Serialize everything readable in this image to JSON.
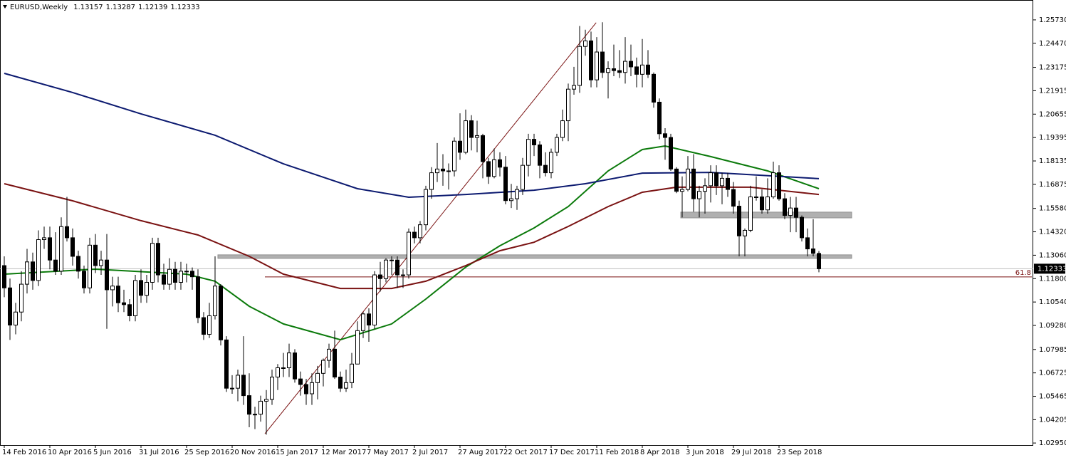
{
  "chart_data": {
    "type": "candlestick",
    "title": "EURUSD,Weekly",
    "categories": [
      "14 Feb 2016",
      null,
      null,
      null,
      null,
      null,
      null,
      null,
      "10 Apr 2016",
      null,
      null,
      null,
      null,
      null,
      null,
      null,
      "5 Jun 2016",
      null,
      null,
      null,
      null,
      null,
      null,
      null,
      "31 Jul 2016",
      null,
      null,
      null,
      null,
      null,
      null,
      null,
      "25 Sep 2016",
      null,
      null,
      null,
      null,
      null,
      null,
      null,
      "20 Nov 2016",
      null,
      null,
      null,
      null,
      null,
      null,
      null,
      "15 Jan 2017",
      null,
      null,
      null,
      null,
      null,
      null,
      null,
      "12 Mar 2017",
      null,
      null,
      null,
      null,
      null,
      null,
      null,
      "7 May 2017",
      null,
      null,
      null,
      null,
      null,
      null,
      null,
      "2 Jul 2017",
      null,
      null,
      null,
      null,
      null,
      null,
      null,
      "27 Aug 2017",
      null,
      null,
      null,
      null,
      null,
      null,
      null,
      "22 Oct 2017",
      null,
      null,
      null,
      null,
      null,
      null,
      null,
      "17 Dec 2017",
      null,
      null,
      null,
      null,
      null,
      null,
      null,
      "11 Feb 2018",
      null,
      null,
      null,
      null,
      null,
      null,
      null,
      "8 Apr 2018",
      null,
      null,
      null,
      null,
      null,
      null,
      null,
      "3 Jun 2018",
      null,
      null,
      null,
      null,
      null,
      null,
      null,
      "29 Jul 2018",
      null,
      null,
      null,
      null,
      null,
      null,
      null,
      "23 Sep 2018",
      null,
      null,
      null,
      null,
      null,
      null,
      null
    ],
    "open": [
      1.125,
      1.113,
      1.093,
      1.1,
      1.115,
      1.127,
      1.117,
      1.139,
      1.14,
      1.128,
      1.122,
      1.146,
      1.14,
      1.13,
      1.122,
      1.113,
      1.136,
      1.125,
      1.128,
      1.112,
      1.114,
      1.105,
      1.104,
      1.098,
      1.117,
      1.109,
      1.116,
      1.137,
      1.12,
      1.115,
      1.123,
      1.116,
      1.122,
      1.122,
      1.119,
      1.097,
      1.088,
      1.098,
      1.114,
      1.085,
      1.059,
      1.059,
      1.066,
      1.055,
      1.045,
      1.045,
      1.052,
      1.053,
      1.065,
      1.07,
      1.07,
      1.078,
      1.064,
      1.061,
      1.056,
      1.062,
      1.067,
      1.074,
      1.08,
      1.065,
      1.059,
      1.062,
      1.072,
      1.09,
      1.099,
      1.093,
      1.12,
      1.118,
      1.128,
      1.128,
      1.12,
      1.12,
      1.143,
      1.14,
      1.147,
      1.166,
      1.175,
      1.177,
      1.176,
      1.176,
      1.192,
      1.186,
      1.203,
      1.194,
      1.195,
      1.181,
      1.173,
      1.182,
      1.178,
      1.16,
      1.161,
      1.166,
      1.179,
      1.193,
      1.19,
      1.179,
      1.175,
      1.186,
      1.194,
      1.203,
      1.22,
      1.222,
      1.243,
      1.246,
      1.225,
      1.24,
      1.229,
      1.231,
      1.23,
      1.229,
      1.235,
      1.232,
      1.228,
      1.233,
      1.228,
      1.213,
      1.196,
      1.194,
      1.177,
      1.165,
      1.166,
      1.177,
      1.161,
      1.165,
      1.168,
      1.175,
      1.168,
      1.172,
      1.166,
      1.157,
      1.141,
      1.144,
      1.162,
      1.162,
      1.155,
      1.162,
      1.175,
      1.161,
      1.152,
      1.156,
      1.151,
      1.14,
      1.134,
      1.13157
    ],
    "high": [
      1.13,
      1.118,
      1.105,
      1.122,
      1.134,
      1.132,
      1.144,
      1.146,
      1.146,
      1.143,
      1.151,
      1.162,
      1.145,
      1.133,
      1.125,
      1.14,
      1.142,
      1.133,
      1.142,
      1.119,
      1.119,
      1.112,
      1.107,
      1.12,
      1.123,
      1.12,
      1.14,
      1.14,
      1.126,
      1.129,
      1.127,
      1.127,
      1.126,
      1.124,
      1.123,
      1.1,
      1.105,
      1.13,
      1.115,
      1.087,
      1.066,
      1.069,
      1.087,
      1.067,
      1.049,
      1.055,
      1.058,
      1.069,
      1.072,
      1.078,
      1.083,
      1.08,
      1.068,
      1.064,
      1.067,
      1.071,
      1.075,
      1.083,
      1.09,
      1.068,
      1.069,
      1.078,
      1.095,
      1.1,
      1.102,
      1.122,
      1.127,
      1.129,
      1.13,
      1.13,
      1.123,
      1.145,
      1.146,
      1.149,
      1.168,
      1.178,
      1.191,
      1.185,
      1.18,
      1.194,
      1.207,
      1.209,
      1.206,
      1.203,
      1.196,
      1.183,
      1.188,
      1.186,
      1.184,
      1.169,
      1.168,
      1.183,
      1.196,
      1.196,
      1.192,
      1.186,
      1.188,
      1.196,
      1.209,
      1.223,
      1.232,
      1.254,
      1.252,
      1.251,
      1.248,
      1.256,
      1.235,
      1.244,
      1.241,
      1.248,
      1.244,
      1.237,
      1.247,
      1.241,
      1.229,
      1.215,
      1.199,
      1.196,
      1.178,
      1.173,
      1.184,
      1.185,
      1.168,
      1.172,
      1.179,
      1.179,
      1.175,
      1.175,
      1.17,
      1.16,
      1.145,
      1.168,
      1.173,
      1.166,
      1.172,
      1.181,
      1.179,
      1.164,
      1.162,
      1.162,
      1.152,
      1.145,
      1.15,
      1.13287
    ],
    "low": [
      1.108,
      1.085,
      1.088,
      1.095,
      1.11,
      1.112,
      1.114,
      1.134,
      1.123,
      1.12,
      1.12,
      1.138,
      1.125,
      1.118,
      1.11,
      1.11,
      1.121,
      1.12,
      1.091,
      1.103,
      1.1,
      1.1,
      1.095,
      1.095,
      1.105,
      1.105,
      1.112,
      1.116,
      1.112,
      1.112,
      1.112,
      1.112,
      1.116,
      1.112,
      1.094,
      1.085,
      1.086,
      1.096,
      1.082,
      1.057,
      1.056,
      1.052,
      1.05,
      1.038,
      1.037,
      1.041,
      1.034,
      1.05,
      1.058,
      1.065,
      1.065,
      1.062,
      1.055,
      1.05,
      1.05,
      1.053,
      1.06,
      1.07,
      1.064,
      1.057,
      1.057,
      1.059,
      1.072,
      1.086,
      1.084,
      1.091,
      1.111,
      1.116,
      1.12,
      1.113,
      1.113,
      1.118,
      1.137,
      1.137,
      1.144,
      1.161,
      1.17,
      1.168,
      1.166,
      1.173,
      1.182,
      1.185,
      1.187,
      1.186,
      1.172,
      1.169,
      1.172,
      1.173,
      1.158,
      1.156,
      1.155,
      1.163,
      1.173,
      1.184,
      1.172,
      1.173,
      1.172,
      1.184,
      1.192,
      1.192,
      1.217,
      1.218,
      1.238,
      1.221,
      1.221,
      1.226,
      1.215,
      1.227,
      1.226,
      1.223,
      1.227,
      1.221,
      1.221,
      1.226,
      1.21,
      1.193,
      1.182,
      1.176,
      1.164,
      1.151,
      1.165,
      1.154,
      1.151,
      1.153,
      1.159,
      1.163,
      1.158,
      1.162,
      1.153,
      1.13,
      1.13,
      1.143,
      1.16,
      1.153,
      1.153,
      1.161,
      1.16,
      1.15,
      1.143,
      1.143,
      1.138,
      1.13,
      1.13,
      1.12139
    ],
    "close": [
      1.113,
      1.093,
      1.1,
      1.115,
      1.127,
      1.117,
      1.139,
      1.14,
      1.128,
      1.122,
      1.146,
      1.14,
      1.13,
      1.122,
      1.113,
      1.136,
      1.125,
      1.128,
      1.112,
      1.114,
      1.105,
      1.104,
      1.098,
      1.117,
      1.109,
      1.116,
      1.137,
      1.12,
      1.115,
      1.123,
      1.116,
      1.122,
      1.122,
      1.119,
      1.097,
      1.088,
      1.098,
      1.114,
      1.085,
      1.059,
      1.059,
      1.066,
      1.055,
      1.045,
      1.045,
      1.052,
      1.053,
      1.065,
      1.07,
      1.07,
      1.078,
      1.064,
      1.061,
      1.056,
      1.062,
      1.067,
      1.074,
      1.08,
      1.065,
      1.059,
      1.062,
      1.072,
      1.09,
      1.099,
      1.093,
      1.12,
      1.118,
      1.128,
      1.128,
      1.12,
      1.12,
      1.143,
      1.14,
      1.147,
      1.166,
      1.175,
      1.177,
      1.176,
      1.176,
      1.192,
      1.186,
      1.203,
      1.194,
      1.195,
      1.181,
      1.173,
      1.182,
      1.178,
      1.16,
      1.161,
      1.166,
      1.179,
      1.193,
      1.19,
      1.179,
      1.175,
      1.186,
      1.194,
      1.203,
      1.22,
      1.222,
      1.243,
      1.246,
      1.225,
      1.24,
      1.229,
      1.231,
      1.23,
      1.229,
      1.235,
      1.232,
      1.228,
      1.233,
      1.228,
      1.213,
      1.196,
      1.194,
      1.177,
      1.165,
      1.166,
      1.177,
      1.161,
      1.165,
      1.168,
      1.175,
      1.168,
      1.172,
      1.166,
      1.157,
      1.141,
      1.144,
      1.162,
      1.162,
      1.155,
      1.162,
      1.175,
      1.161,
      1.152,
      1.156,
      1.151,
      1.14,
      1.134,
      1.1316,
      1.12333
    ],
    "moving_averages": [
      {
        "color": "#0b7a0b",
        "x": [
          0,
          16,
          32,
          37,
          43,
          49,
          59,
          68,
          74,
          81,
          87,
          93,
          99,
          106,
          112,
          116,
          124,
          134,
          143
        ],
        "values": [
          1.1204,
          1.1231,
          1.1204,
          1.1166,
          1.1031,
          1.0936,
          1.0851,
          1.0936,
          1.107,
          1.1242,
          1.1357,
          1.1453,
          1.1568,
          1.176,
          1.1875,
          1.1894,
          1.1837,
          1.176,
          1.1664
        ]
      },
      {
        "color": "#7a1212",
        "x": [
          0,
          12,
          24,
          34,
          43,
          49,
          59,
          68,
          74,
          81,
          87,
          93,
          99,
          106,
          112,
          118,
          131,
          143
        ],
        "values": [
          1.1691,
          1.1599,
          1.1492,
          1.1415,
          1.13,
          1.1204,
          1.1127,
          1.1127,
          1.1166,
          1.125,
          1.133,
          1.1376,
          1.1461,
          1.1568,
          1.1645,
          1.1672,
          1.1672,
          1.1633
        ]
      },
      {
        "color": "#0c1a70",
        "x": [
          0,
          12,
          24,
          37,
          49,
          62,
          71,
          81,
          93,
          102,
          112,
          124,
          143
        ],
        "values": [
          1.2285,
          1.2182,
          1.2067,
          1.1952,
          1.1798,
          1.1664,
          1.1618,
          1.1633,
          1.1656,
          1.1691,
          1.1748,
          1.1752,
          1.1718
        ]
      }
    ],
    "zones": [
      {
        "x": [
          37.5,
          148.75
        ],
        "y": [
          1.1289,
          1.1308
        ]
      },
      {
        "x": [
          118.75,
          148.75
        ],
        "y": [
          1.1507,
          1.1538
        ]
      }
    ],
    "trendline": {
      "x": [
        45.75,
        103.9
      ],
      "y": [
        1.0345,
        1.2558
      ],
      "color": "#7a1212"
    },
    "fibonacci": {
      "label": 61.8,
      "price": 1.1189,
      "x_start": 45.75,
      "color": "#7a1212"
    },
    "ylim": [
      1.0284,
      1.268
    ],
    "yticks": [
      {
        "value": 1.2573,
        "label": "1.25730"
      },
      {
        "value": 1.2447,
        "label": "1.24470"
      },
      1.23175,
      {
        "value": 1.21915,
        "label": "1.21915"
      },
      1.20655,
      1.19395,
      1.18135,
      1.16875,
      {
        "value": 1.1558,
        "label": "1.15580"
      },
      {
        "value": 1.1432,
        "label": "1.14320"
      },
      {
        "value": 1.1306,
        "label": "1.13060"
      },
      {
        "value": 1.118,
        "label": "1.11800"
      },
      {
        "value": 1.1054,
        "label": "1.10540"
      },
      {
        "value": 1.0928,
        "label": "1.09280"
      },
      1.07985,
      1.06725,
      1.05465,
      1.04205,
      {
        "value": 1.0295,
        "label": "1.02950"
      }
    ]
  }
}
